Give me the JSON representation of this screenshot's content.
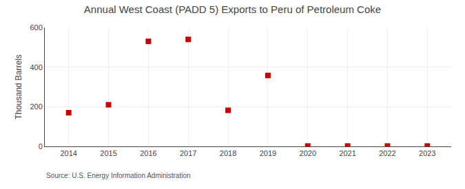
{
  "chart_data": {
    "type": "scatter",
    "title": "Annual West Coast (PADD 5) Exports to Peru of Petroleum Coke",
    "ylabel": "Thousand Barrels",
    "source": "Source: U.S. Energy Information Administration",
    "x": [
      2014,
      2015,
      2016,
      2017,
      2018,
      2019,
      2020,
      2021,
      2022,
      2023
    ],
    "values": [
      170,
      210,
      530,
      540,
      182,
      358,
      2,
      2,
      2,
      2
    ],
    "color": "#cc0000",
    "marker": "square",
    "xlim": [
      2013.4,
      2023.6
    ],
    "xticks": [
      2014,
      2015,
      2016,
      2017,
      2018,
      2019,
      2020,
      2021,
      2022,
      2023
    ],
    "ylim": [
      0,
      600
    ],
    "yticks": [
      0,
      200,
      400,
      600
    ],
    "grid": true
  }
}
